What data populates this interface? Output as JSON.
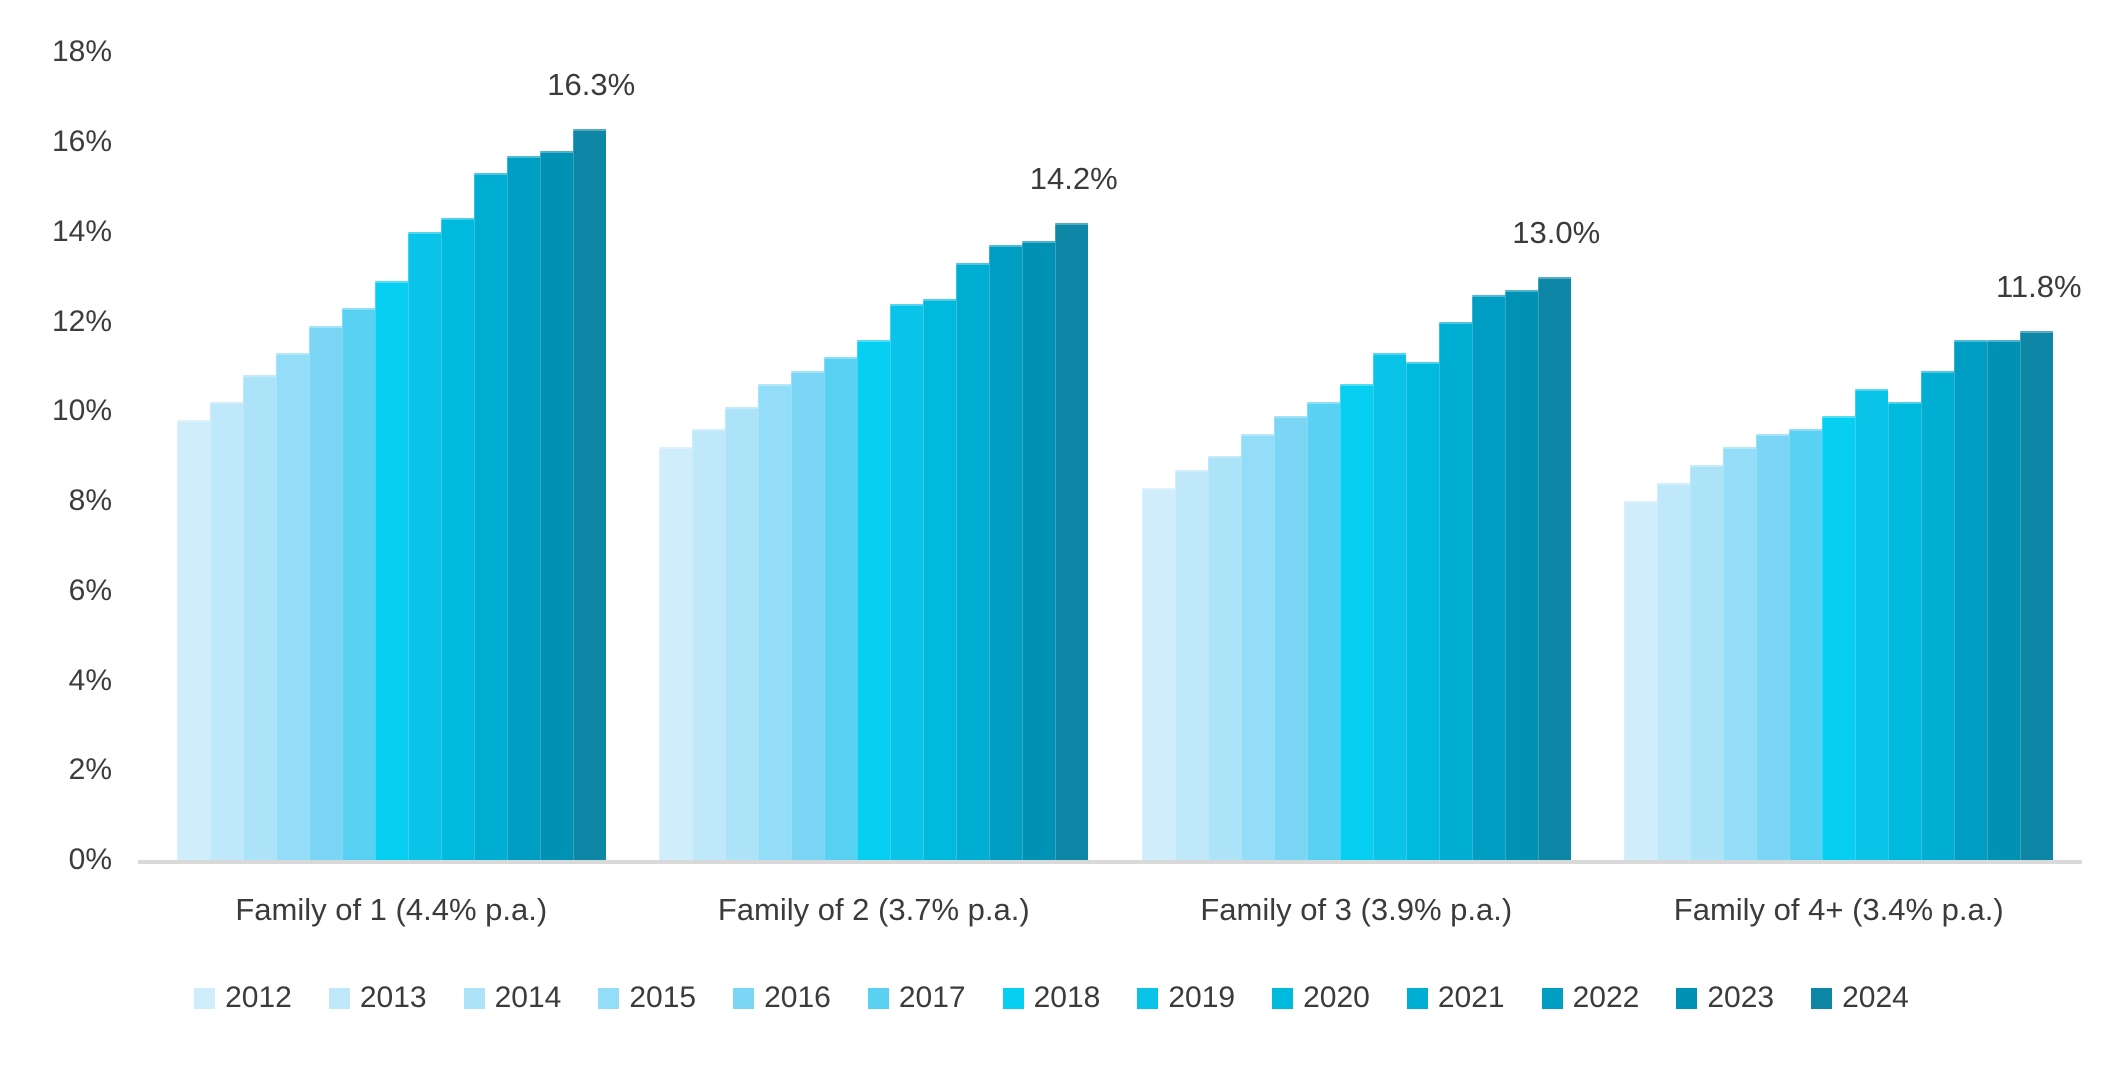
{
  "chart_data": {
    "type": "bar",
    "title": "",
    "y_axis": {
      "min": 0,
      "max": 18,
      "step": 2,
      "tick_labels": [
        "0%",
        "2%",
        "4%",
        "6%",
        "8%",
        "10%",
        "12%",
        "14%",
        "16%",
        "18%"
      ]
    },
    "grid": false,
    "legend_position": "bottom",
    "years": [
      "2012",
      "2013",
      "2014",
      "2015",
      "2016",
      "2017",
      "2018",
      "2019",
      "2020",
      "2021",
      "2022",
      "2023",
      "2024"
    ],
    "year_colors": [
      "#D0EDFB",
      "#BFE8FA",
      "#ACE3F9",
      "#93DDF8",
      "#7BD6F6",
      "#59D1F3",
      "#06CFF2",
      "#0AC3E8",
      "#00BADE",
      "#00AED3",
      "#009EC2",
      "#0092B4",
      "#0E86A6"
    ],
    "groups": [
      {
        "label": "Family of 1 (4.4% p.a.)",
        "annotation": "16.3%",
        "values": [
          9.8,
          10.2,
          10.8,
          11.3,
          11.9,
          12.3,
          12.9,
          14.0,
          14.3,
          15.3,
          15.7,
          15.8,
          16.3
        ]
      },
      {
        "label": "Family of 2 (3.7% p.a.)",
        "annotation": "14.2%",
        "values": [
          9.2,
          9.6,
          10.1,
          10.6,
          10.9,
          11.2,
          11.6,
          12.4,
          12.5,
          13.3,
          13.7,
          13.8,
          14.2
        ]
      },
      {
        "label": "Family of 3 (3.9% p.a.)",
        "annotation": "13.0%",
        "values": [
          8.3,
          8.7,
          9.0,
          9.5,
          9.9,
          10.2,
          10.6,
          11.3,
          11.1,
          12.0,
          12.6,
          12.7,
          13.0
        ]
      },
      {
        "label": "Family of 4+ (3.4% p.a.)",
        "annotation": "11.8%",
        "values": [
          8.0,
          8.4,
          8.8,
          9.2,
          9.5,
          9.6,
          9.9,
          10.5,
          10.2,
          10.9,
          11.6,
          11.6,
          11.8
        ]
      }
    ],
    "colors": {
      "axis_line": "#D9D9D9",
      "text": "#404040"
    }
  }
}
